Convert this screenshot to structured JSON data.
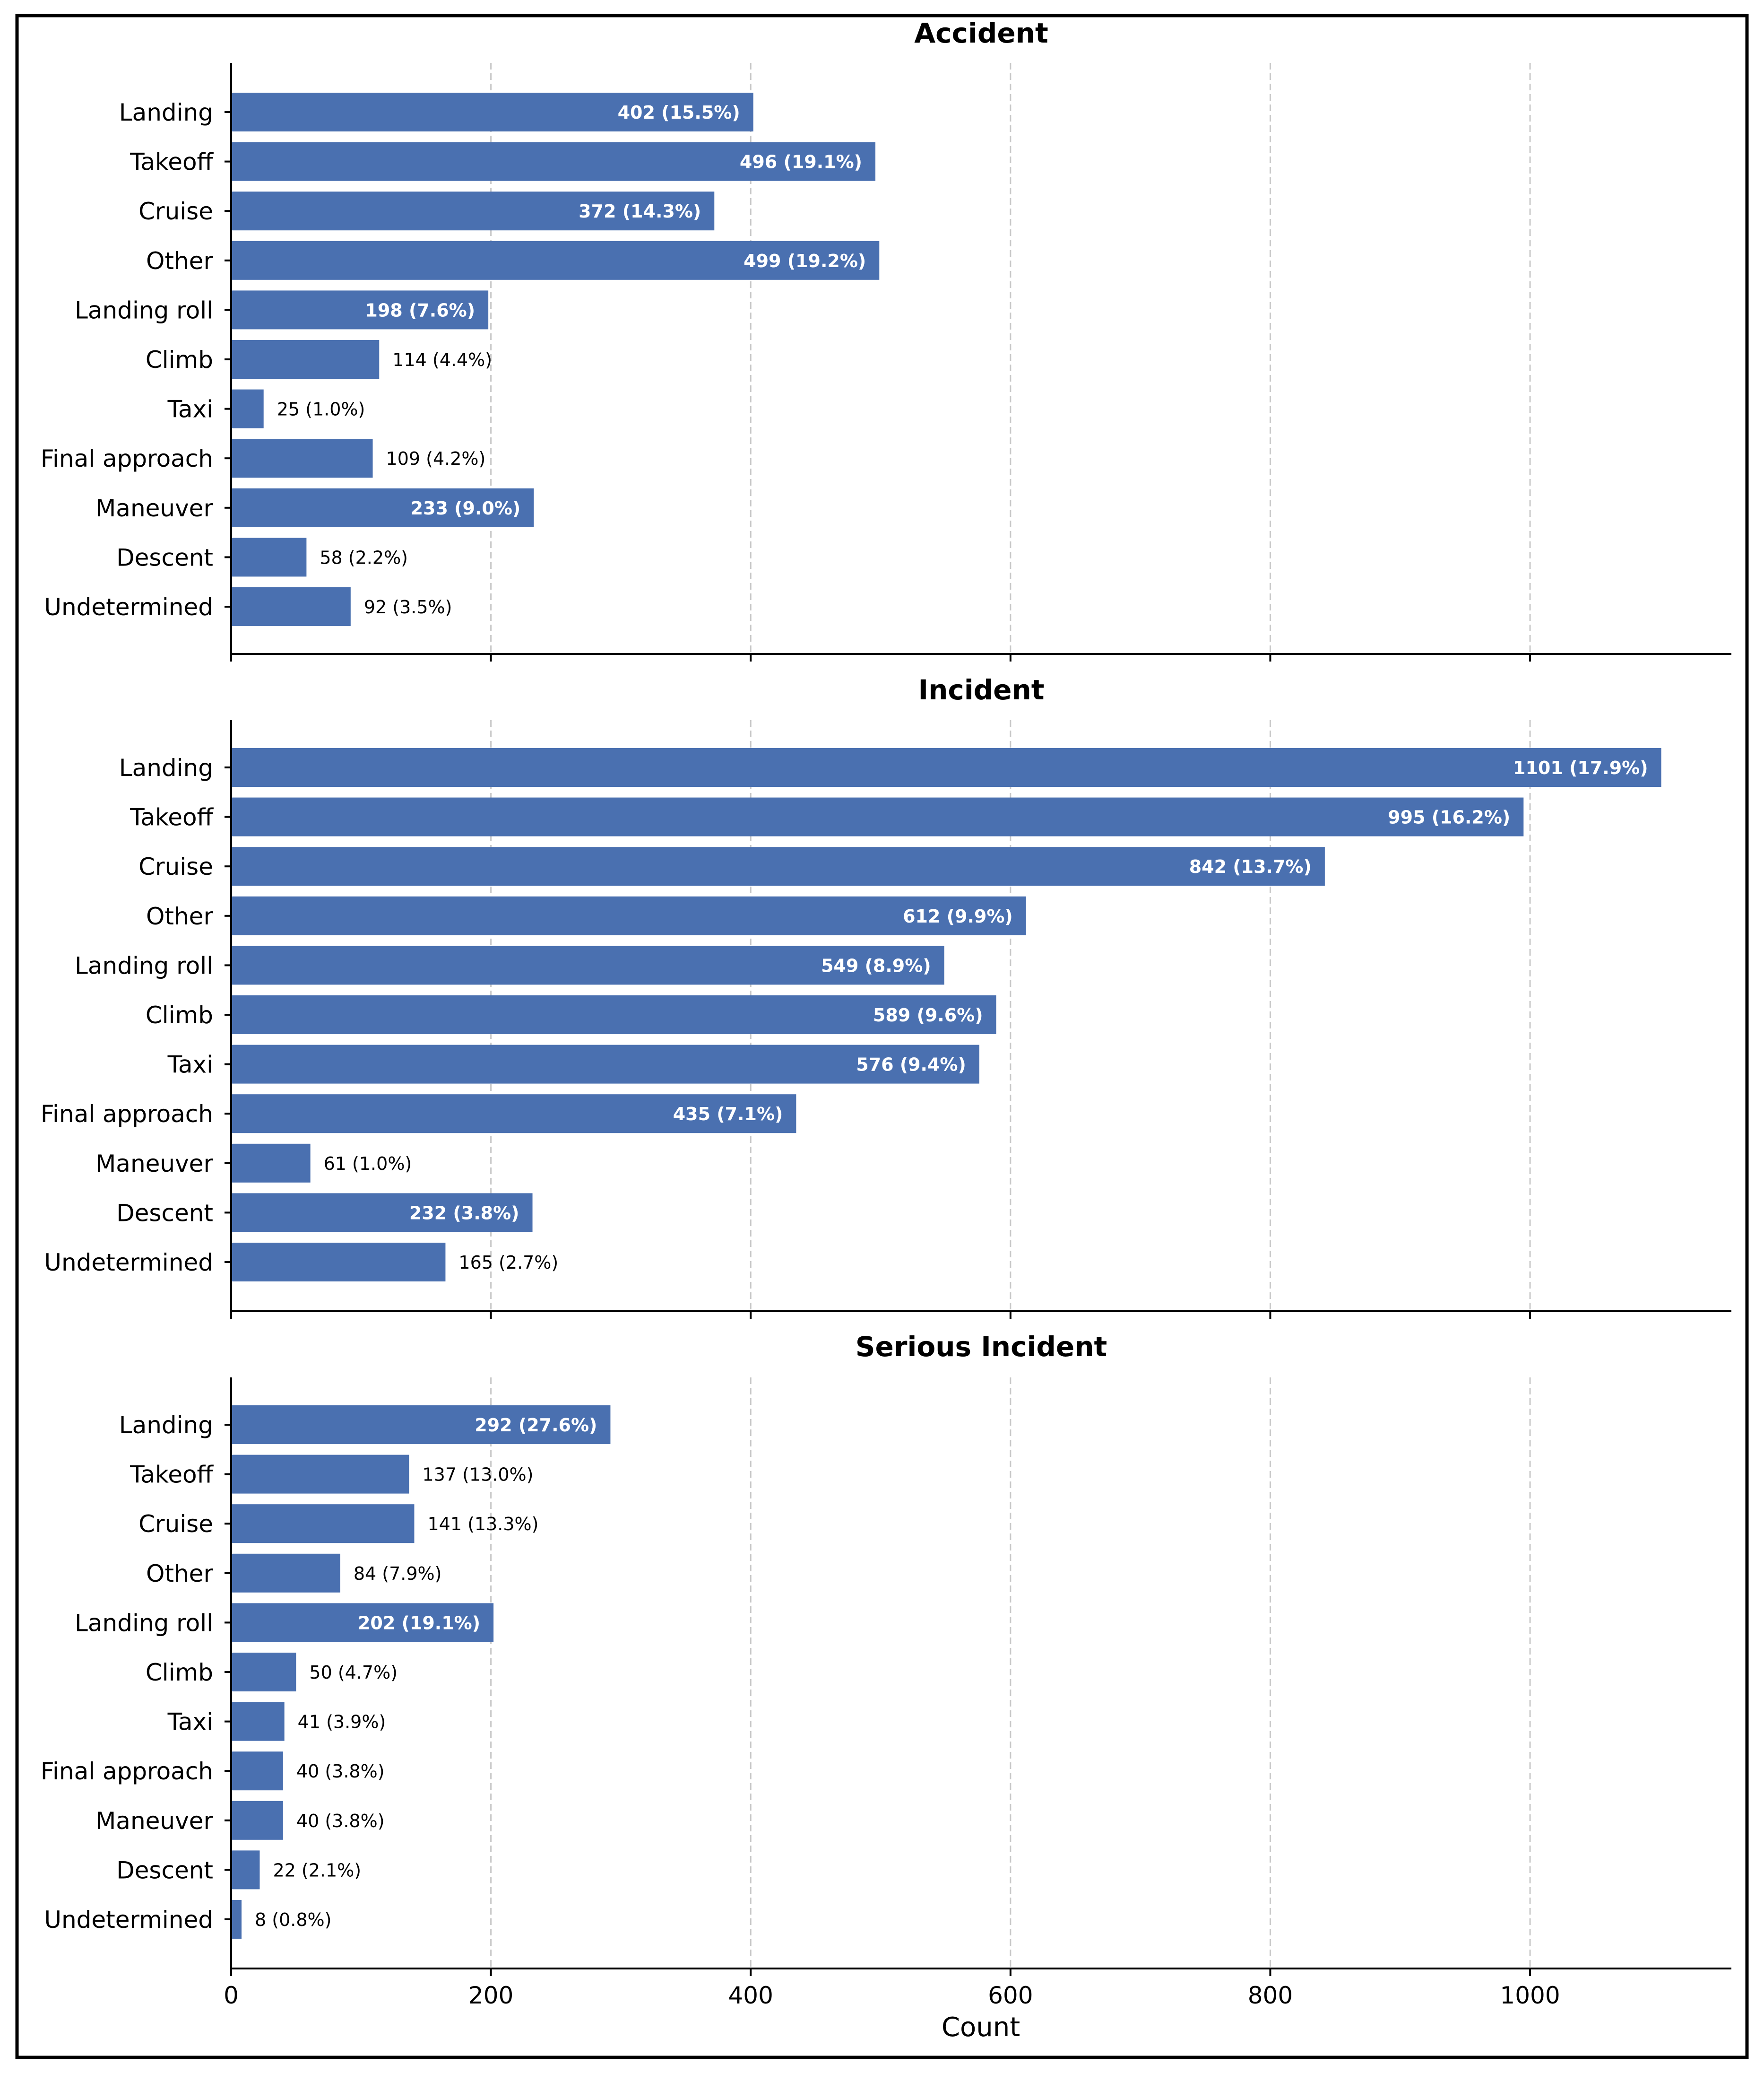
{
  "chart_data": [
    {
      "type": "bar",
      "orientation": "horizontal",
      "title": "Accident",
      "categories": [
        "Landing",
        "Takeoff",
        "Cruise",
        "Other",
        "Landing roll",
        "Climb",
        "Taxi",
        "Final approach",
        "Maneuver",
        "Descent",
        "Undetermined"
      ],
      "values": [
        402,
        496,
        372,
        499,
        198,
        114,
        25,
        109,
        233,
        58,
        92
      ],
      "labels": [
        "402 (15.5%)",
        "496 (19.1%)",
        "372 (14.3%)",
        "499 (19.2%)",
        "198 (7.6%)",
        "114 (4.4%)",
        "25 (1.0%)",
        "109 (4.2%)",
        "233 (9.0%)",
        "58 (2.2%)",
        "92 (3.5%)"
      ],
      "xlim": [
        0,
        1155
      ],
      "grid": true,
      "xlabel": ""
    },
    {
      "type": "bar",
      "orientation": "horizontal",
      "title": "Incident",
      "categories": [
        "Landing",
        "Takeoff",
        "Cruise",
        "Other",
        "Landing roll",
        "Climb",
        "Taxi",
        "Final approach",
        "Maneuver",
        "Descent",
        "Undetermined"
      ],
      "values": [
        1101,
        995,
        842,
        612,
        549,
        589,
        576,
        435,
        61,
        232,
        165
      ],
      "labels": [
        "1101 (17.9%)",
        "995 (16.2%)",
        "842 (13.7%)",
        "612 (9.9%)",
        "549 (8.9%)",
        "589 (9.6%)",
        "576 (9.4%)",
        "435 (7.1%)",
        "61 (1.0%)",
        "232 (3.8%)",
        "165 (2.7%)"
      ],
      "xlim": [
        0,
        1155
      ],
      "grid": true,
      "xlabel": ""
    },
    {
      "type": "bar",
      "orientation": "horizontal",
      "title": "Serious Incident",
      "categories": [
        "Landing",
        "Takeoff",
        "Cruise",
        "Other",
        "Landing roll",
        "Climb",
        "Taxi",
        "Final approach",
        "Maneuver",
        "Descent",
        "Undetermined"
      ],
      "values": [
        292,
        137,
        141,
        84,
        202,
        50,
        41,
        40,
        40,
        22,
        8
      ],
      "labels": [
        "292 (27.6%)",
        "137 (13.0%)",
        "141 (13.3%)",
        "84 (7.9%)",
        "202 (19.1%)",
        "50 (4.7%)",
        "41 (3.9%)",
        "40 (3.8%)",
        "40 (3.8%)",
        "22 (2.1%)",
        "8 (0.8%)"
      ],
      "xlim": [
        0,
        1155
      ],
      "grid": true,
      "xlabel": "Count",
      "xticks": [
        "0",
        "200",
        "400",
        "600",
        "800",
        "1000"
      ]
    }
  ],
  "style": {
    "bar_color": "#4a70b0",
    "grid_color": "#c8c8c8",
    "axis_color": "#000000",
    "inside_label_color": "#ffffff",
    "outside_label_color": "#000000"
  }
}
